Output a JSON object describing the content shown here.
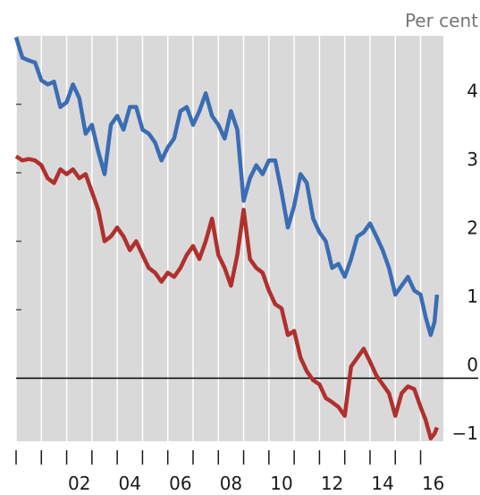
{
  "chart_data": {
    "type": "line",
    "y_unit": "Per cent",
    "x": [
      2000,
      2000.25,
      2000.5,
      2000.75,
      2001,
      2001.25,
      2001.5,
      2001.75,
      2002,
      2002.25,
      2002.5,
      2002.75,
      2003,
      2003.25,
      2003.5,
      2003.75,
      2004,
      2004.25,
      2004.5,
      2004.75,
      2005,
      2005.25,
      2005.5,
      2005.75,
      2006,
      2006.25,
      2006.5,
      2006.75,
      2007,
      2007.25,
      2007.5,
      2007.75,
      2008,
      2008.25,
      2008.5,
      2008.75,
      2009,
      2009.25,
      2009.5,
      2009.75,
      2010,
      2010.25,
      2010.5,
      2010.75,
      2011,
      2011.25,
      2011.5,
      2011.75,
      2012,
      2012.25,
      2012.5,
      2012.75,
      2013,
      2013.25,
      2013.5,
      2013.75,
      2014,
      2014.25,
      2014.5,
      2014.75,
      2015,
      2015.25,
      2015.5,
      2015.75,
      2016,
      2016.2,
      2016.4,
      2016.55,
      2016.65
    ],
    "series": [
      {
        "color": "#3a6db4",
        "values": [
          4.98,
          4.68,
          4.64,
          4.61,
          4.35,
          4.29,
          4.33,
          3.96,
          4.03,
          4.29,
          4.09,
          3.57,
          3.7,
          3.31,
          2.98,
          3.7,
          3.83,
          3.63,
          3.96,
          3.96,
          3.63,
          3.57,
          3.44,
          3.18,
          3.37,
          3.5,
          3.9,
          3.96,
          3.7,
          3.9,
          4.16,
          3.83,
          3.7,
          3.5,
          3.9,
          3.63,
          2.59,
          2.92,
          3.11,
          2.98,
          3.18,
          3.18,
          2.72,
          2.2,
          2.52,
          2.98,
          2.85,
          2.33,
          2.13,
          2.0,
          1.61,
          1.67,
          1.48,
          1.74,
          2.07,
          2.13,
          2.26,
          2.07,
          1.87,
          1.61,
          1.22,
          1.35,
          1.48,
          1.28,
          1.22,
          0.89,
          0.63,
          0.82,
          1.22
        ]
      },
      {
        "color": "#b0302d",
        "values": [
          3.24,
          3.18,
          3.2,
          3.18,
          3.11,
          2.92,
          2.85,
          3.05,
          2.98,
          3.05,
          2.92,
          2.98,
          2.72,
          2.46,
          2.0,
          2.07,
          2.2,
          2.07,
          1.87,
          2.0,
          1.8,
          1.61,
          1.54,
          1.41,
          1.54,
          1.48,
          1.61,
          1.8,
          1.93,
          1.74,
          2.0,
          2.33,
          1.8,
          1.61,
          1.35,
          1.8,
          2.46,
          1.74,
          1.61,
          1.54,
          1.28,
          1.08,
          1.02,
          0.63,
          0.69,
          0.3,
          0.1,
          -0.03,
          -0.09,
          -0.29,
          -0.35,
          -0.42,
          -0.55,
          0.17,
          0.3,
          0.43,
          0.24,
          0.04,
          -0.09,
          -0.22,
          -0.55,
          -0.22,
          -0.12,
          -0.16,
          -0.42,
          -0.61,
          -0.88,
          -0.81,
          -0.72
        ]
      }
    ],
    "xlim": [
      2000,
      2016.9
    ],
    "ylim": [
      -1,
      5
    ],
    "xticks": [
      {
        "value": 2002.5,
        "label": "02"
      },
      {
        "value": 2004.5,
        "label": "04"
      },
      {
        "value": 2006.5,
        "label": "06"
      },
      {
        "value": 2008.5,
        "label": "08"
      },
      {
        "value": 2010.5,
        "label": "10"
      },
      {
        "value": 2012.5,
        "label": "12"
      },
      {
        "value": 2014.5,
        "label": "14"
      },
      {
        "value": 2016.5,
        "label": "16"
      }
    ],
    "xminor_ticks": [
      2000,
      2001,
      2002,
      2003,
      2004,
      2005,
      2006,
      2007,
      2008,
      2009,
      2010,
      2011,
      2012,
      2013,
      2014,
      2015,
      2016
    ],
    "yticks": [
      {
        "value": -1,
        "label": "−1"
      },
      0,
      1,
      2,
      3,
      4
    ],
    "zero_line": true,
    "grid": true,
    "background": "#d9d9d9"
  }
}
